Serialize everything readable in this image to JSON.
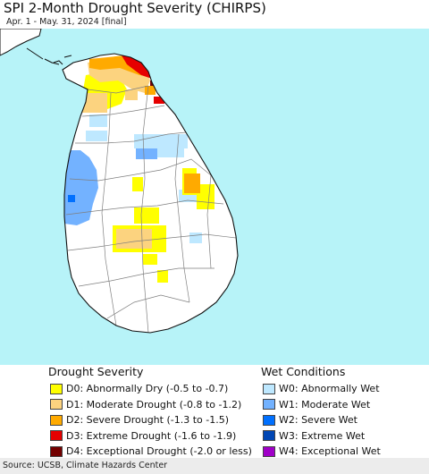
{
  "title": "SPI 2-Month Drought Severity (CHIRPS)",
  "subtitle": "Apr. 1 - May. 31, 2024 [final]",
  "colors": {
    "ocean": "#b7f3f8",
    "land": "#ffffff",
    "border": "#7f7f7f",
    "coast": "#111111"
  },
  "legend": {
    "drought": {
      "heading": "Drought Severity",
      "items": [
        {
          "label": "D0: Abnormally Dry (-0.5 to -0.7)",
          "color": "#ffff00"
        },
        {
          "label": "D1: Moderate Drought (-0.8 to -1.2)",
          "color": "#fcd37f"
        },
        {
          "label": "D2: Severe Drought (-1.3 to -1.5)",
          "color": "#ffaa00"
        },
        {
          "label": "D3: Extreme Drought (-1.6 to -1.9)",
          "color": "#e60000"
        },
        {
          "label": "D4: Exceptional Drought (-2.0 or less)",
          "color": "#730000"
        }
      ]
    },
    "wet": {
      "heading": "Wet Conditions",
      "items": [
        {
          "label": "W0: Abnormally Wet",
          "color": "#bee8ff"
        },
        {
          "label": "W1: Moderate Wet",
          "color": "#73b2ff"
        },
        {
          "label": "W2: Severe Wet",
          "color": "#0070ff"
        },
        {
          "label": "W3: Extreme Wet",
          "color": "#0046b4"
        },
        {
          "label": "W4: Exceptional Wet",
          "color": "#a000c8"
        }
      ]
    }
  },
  "footer": {
    "source": "Source: UCSB, Climate Hazards Center"
  }
}
